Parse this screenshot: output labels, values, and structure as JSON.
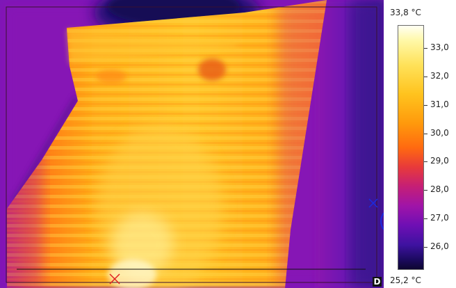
{
  "scale": {
    "max_label": "33,8 °C",
    "min_label": "25,2 °C",
    "max_value": 33.8,
    "min_value": 25.2,
    "ticks": [
      {
        "label": "33,0",
        "value": 33.0
      },
      {
        "label": "32,0",
        "value": 32.0
      },
      {
        "label": "31,0",
        "value": 31.0
      },
      {
        "label": "30,0",
        "value": 30.0
      },
      {
        "label": "29,0",
        "value": 29.0
      },
      {
        "label": "28,0",
        "value": 28.0
      },
      {
        "label": "27,0",
        "value": 27.0
      },
      {
        "label": "26,0",
        "value": 26.0
      }
    ]
  },
  "markers": {
    "hot_spot": "red-cross-marker",
    "cold_spot": "blue-cross-marker"
  },
  "palette": "iron",
  "frame_corner_label": "D"
}
